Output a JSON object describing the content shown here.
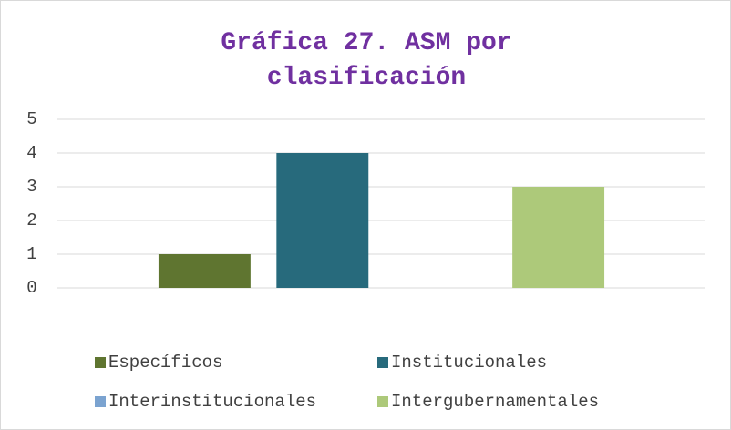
{
  "chart_data": {
    "type": "bar",
    "title": "Gráfica 27. ASM por clasificación",
    "categories": [
      null
    ],
    "series": [
      {
        "name": "Específicos",
        "color": "#5f7530",
        "values": [
          1
        ]
      },
      {
        "name": "Institucionales",
        "color": "#276a7c",
        "values": [
          4
        ]
      },
      {
        "name": "Interinstitucionales",
        "color": "#7ba3d0",
        "values": [
          0
        ]
      },
      {
        "name": "Intergubernamentales",
        "color": "#adc97a",
        "values": [
          3
        ]
      }
    ],
    "ylim": [
      0,
      5
    ],
    "yticks": [
      0,
      1,
      2,
      3,
      4,
      5
    ],
    "grid": true,
    "legend": "bottom"
  }
}
